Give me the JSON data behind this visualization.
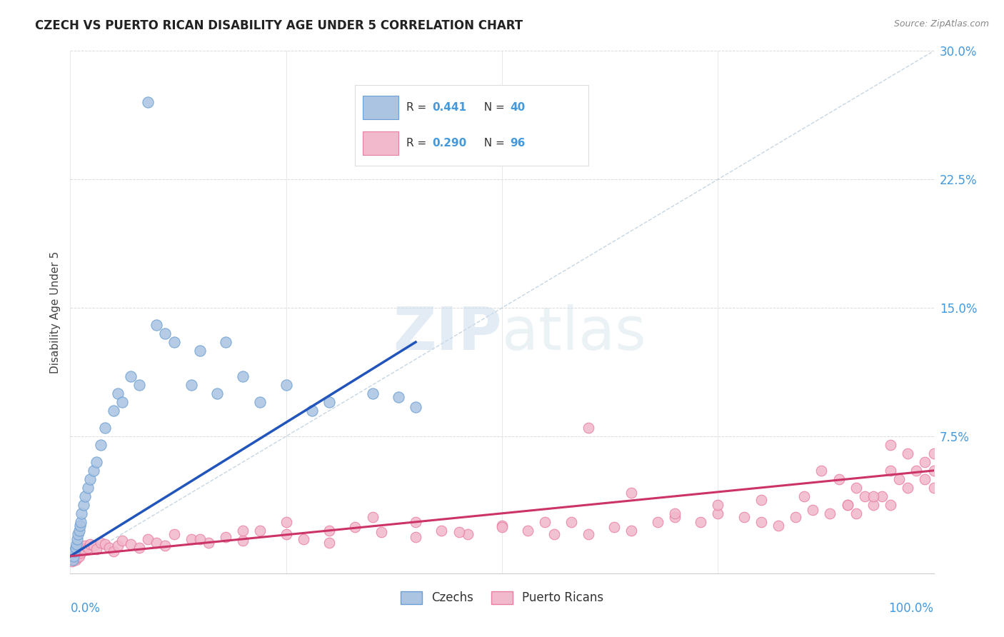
{
  "title": "CZECH VS PUERTO RICAN DISABILITY AGE UNDER 5 CORRELATION CHART",
  "source": "Source: ZipAtlas.com",
  "ylabel": "Disability Age Under 5",
  "yticks": [
    "7.5%",
    "15.0%",
    "22.5%",
    "30.0%"
  ],
  "ytick_vals": [
    7.5,
    15.0,
    22.5,
    30.0
  ],
  "xlim": [
    0.0,
    100.0
  ],
  "ylim": [
    -0.5,
    30.0
  ],
  "legend_czech_R": "0.441",
  "legend_czech_N": "40",
  "legend_pr_R": "0.290",
  "legend_pr_N": "96",
  "czech_color": "#aac4e2",
  "czech_edge": "#6b9fd4",
  "pr_color": "#f2b8cb",
  "pr_edge": "#e87fa0",
  "czech_line_color": "#2255bb",
  "pr_line_color": "#cc3366",
  "diag_color": "#b8ccdd",
  "grid_color": "#cccccc",
  "bg_color": "#ffffff",
  "tick_color": "#4499dd",
  "source_color": "#888888",
  "title_color": "#222222",
  "czech_x": [
    0.3,
    0.4,
    0.5,
    0.6,
    0.7,
    0.8,
    0.9,
    1.0,
    1.1,
    1.2,
    1.3,
    1.5,
    1.7,
    2.0,
    2.3,
    2.7,
    3.0,
    3.5,
    4.0,
    5.0,
    5.5,
    6.0,
    7.0,
    8.0,
    9.0,
    10.0,
    11.0,
    12.0,
    14.0,
    15.0,
    17.0,
    18.0,
    20.0,
    22.0,
    25.0,
    28.0,
    30.0,
    35.0,
    38.0,
    40.0
  ],
  "czech_y": [
    0.3,
    0.5,
    0.8,
    1.0,
    1.2,
    1.5,
    1.8,
    2.0,
    2.3,
    2.5,
    3.0,
    3.5,
    4.0,
    4.5,
    5.0,
    5.5,
    6.0,
    7.0,
    8.0,
    9.0,
    10.0,
    9.5,
    11.0,
    10.5,
    27.0,
    14.0,
    13.5,
    13.0,
    10.5,
    12.5,
    10.0,
    13.0,
    11.0,
    9.5,
    10.5,
    9.0,
    9.5,
    10.0,
    9.8,
    9.2
  ],
  "pr_x": [
    0.2,
    0.4,
    0.5,
    0.6,
    0.7,
    0.8,
    0.9,
    1.0,
    1.1,
    1.2,
    1.3,
    1.5,
    1.7,
    2.0,
    2.3,
    2.7,
    3.0,
    3.5,
    4.0,
    4.5,
    5.0,
    5.5,
    6.0,
    7.0,
    8.0,
    9.0,
    10.0,
    11.0,
    12.0,
    14.0,
    16.0,
    18.0,
    20.0,
    22.0,
    25.0,
    27.0,
    30.0,
    33.0,
    36.0,
    40.0,
    43.0,
    46.0,
    50.0,
    53.0,
    56.0,
    58.0,
    60.0,
    63.0,
    65.0,
    68.0,
    70.0,
    73.0,
    75.0,
    78.0,
    80.0,
    82.0,
    84.0,
    86.0,
    88.0,
    90.0,
    91.0,
    92.0,
    93.0,
    94.0,
    95.0,
    96.0,
    97.0,
    98.0,
    99.0,
    100.0,
    85.0,
    87.0,
    89.0,
    91.0,
    93.0,
    95.0,
    97.0,
    99.0,
    100.0,
    45.0,
    50.0,
    55.0,
    60.0,
    65.0,
    70.0,
    75.0,
    80.0,
    90.0,
    95.0,
    100.0,
    15.0,
    20.0,
    25.0,
    30.0,
    35.0,
    40.0
  ],
  "pr_y": [
    0.2,
    0.3,
    0.4,
    0.3,
    0.5,
    0.4,
    0.6,
    0.5,
    0.8,
    0.7,
    1.0,
    0.9,
    1.1,
    1.0,
    1.2,
    1.1,
    0.9,
    1.3,
    1.2,
    1.0,
    0.8,
    1.1,
    1.4,
    1.2,
    1.0,
    1.5,
    1.3,
    1.1,
    1.8,
    1.5,
    1.3,
    1.6,
    1.4,
    2.0,
    1.8,
    1.5,
    1.3,
    2.2,
    1.9,
    1.6,
    2.0,
    1.8,
    2.3,
    2.0,
    1.8,
    2.5,
    8.0,
    2.2,
    2.0,
    2.5,
    2.8,
    2.5,
    3.0,
    2.8,
    2.5,
    2.3,
    2.8,
    3.2,
    3.0,
    3.5,
    3.0,
    4.0,
    3.5,
    4.0,
    3.5,
    5.0,
    4.5,
    5.5,
    5.0,
    4.5,
    4.0,
    5.5,
    5.0,
    4.5,
    4.0,
    5.5,
    6.5,
    6.0,
    5.5,
    1.9,
    2.2,
    2.5,
    1.8,
    4.2,
    3.0,
    3.5,
    3.8,
    3.5,
    7.0,
    6.5,
    1.5,
    2.0,
    2.5,
    2.0,
    2.8,
    2.5
  ]
}
